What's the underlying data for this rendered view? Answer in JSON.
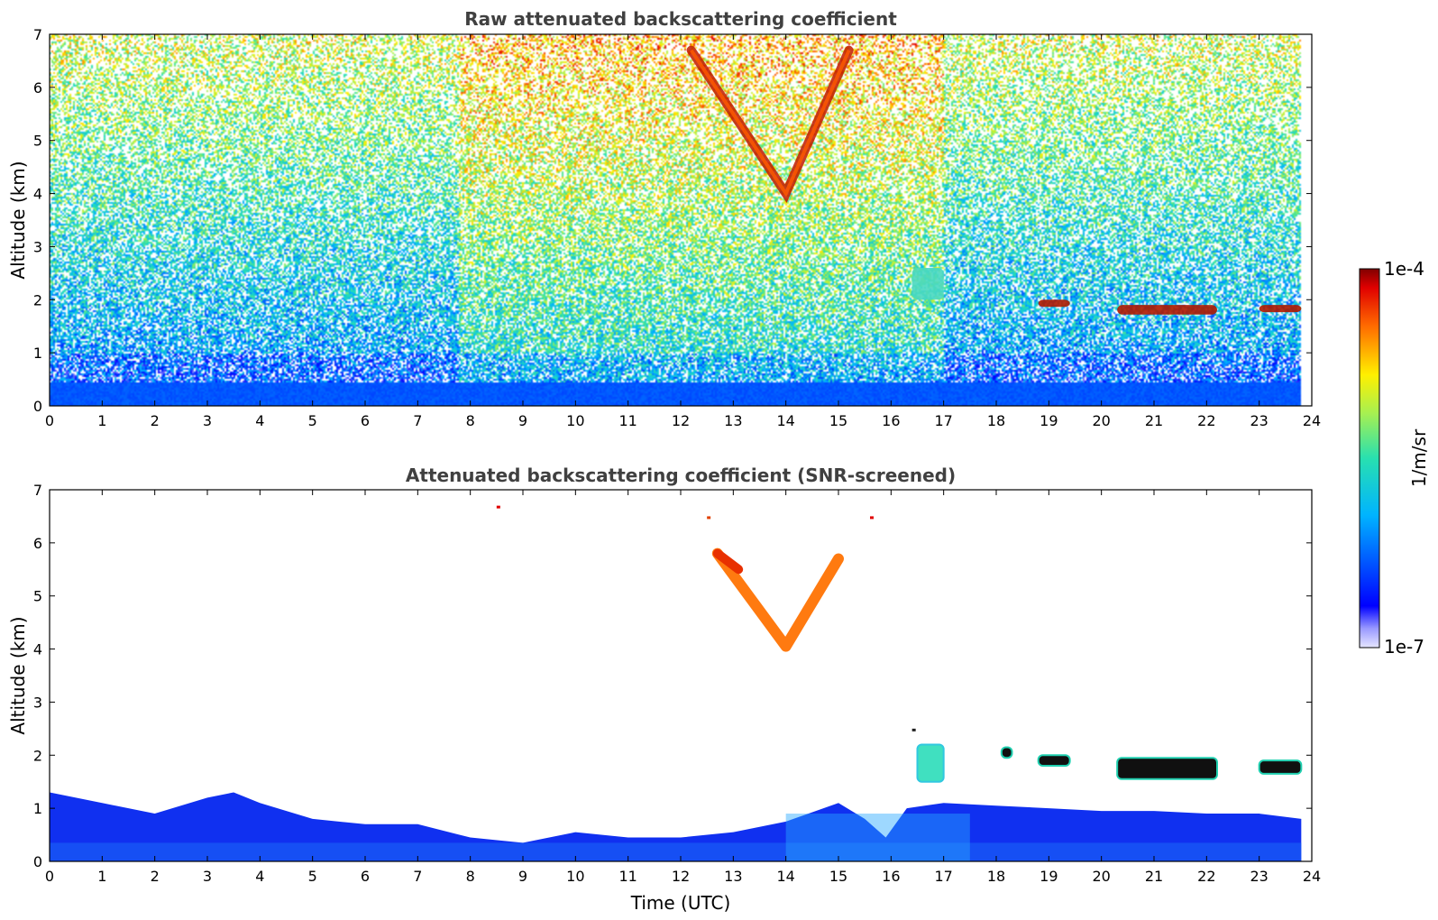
{
  "chart_data": [
    {
      "type": "heatmap",
      "title": "Raw attenuated backscattering coefficient",
      "ylabel": "Altitude (km)",
      "xlabel": "",
      "xlim": [
        0,
        24
      ],
      "ylim": [
        0,
        7
      ],
      "xticks": [
        "0",
        "1",
        "2",
        "3",
        "4",
        "5",
        "6",
        "7",
        "8",
        "9",
        "10",
        "11",
        "12",
        "13",
        "14",
        "15",
        "16",
        "17",
        "18",
        "19",
        "20",
        "21",
        "22",
        "23",
        "24"
      ],
      "yticks": [
        "0",
        "1",
        "2",
        "3",
        "4",
        "5",
        "6",
        "7"
      ],
      "data_end_hour": 23.8,
      "features": [
        {
          "kind": "boundary_layer",
          "top_km": 0.5
        },
        {
          "kind": "cloud_v",
          "hours": [
            12.2,
            15.2
          ],
          "apex_hour": 14.0,
          "apex_km": 4.0,
          "top_km": 7.0
        },
        {
          "kind": "cloud_layer",
          "hours": [
            20.3,
            22.2
          ],
          "km": [
            1.6,
            1.9
          ]
        },
        {
          "kind": "cloud_layer",
          "hours": [
            23.0,
            23.8
          ],
          "km": [
            1.7,
            1.9
          ]
        },
        {
          "kind": "cloud_patch",
          "hours": [
            16.4,
            17.0
          ],
          "km": [
            1.6,
            2.6
          ]
        },
        {
          "kind": "cloud_patch",
          "hours": [
            18.8,
            19.4
          ],
          "km": [
            1.8,
            2.0
          ]
        }
      ]
    },
    {
      "type": "heatmap",
      "title": "Attenuated backscattering coefficient (SNR-screened)",
      "ylabel": "Altitude (km)",
      "xlabel": "Time (UTC)",
      "xlim": [
        0,
        24
      ],
      "ylim": [
        0,
        7
      ],
      "xticks": [
        "0",
        "1",
        "2",
        "3",
        "4",
        "5",
        "6",
        "7",
        "8",
        "9",
        "10",
        "11",
        "12",
        "13",
        "14",
        "15",
        "16",
        "17",
        "18",
        "19",
        "20",
        "21",
        "22",
        "23",
        "24"
      ],
      "yticks": [
        "0",
        "1",
        "2",
        "3",
        "4",
        "5",
        "6",
        "7"
      ],
      "data_end_hour": 23.8,
      "boundary_layer_top_km": [
        [
          0,
          1.3
        ],
        [
          1,
          1.1
        ],
        [
          2,
          0.9
        ],
        [
          3,
          1.2
        ],
        [
          3.5,
          1.3
        ],
        [
          4,
          1.1
        ],
        [
          5,
          0.8
        ],
        [
          6,
          0.7
        ],
        [
          7,
          0.7
        ],
        [
          8,
          0.45
        ],
        [
          9,
          0.35
        ],
        [
          10,
          0.55
        ],
        [
          11,
          0.45
        ],
        [
          12,
          0.45
        ],
        [
          13,
          0.55
        ],
        [
          14,
          0.75
        ],
        [
          15,
          1.1
        ],
        [
          15.5,
          0.8
        ],
        [
          15.9,
          0.45
        ],
        [
          16.3,
          1.0
        ],
        [
          17,
          1.1
        ],
        [
          18,
          1.05
        ],
        [
          19,
          1.0
        ],
        [
          20,
          0.95
        ],
        [
          21,
          0.95
        ],
        [
          22,
          0.9
        ],
        [
          23,
          0.9
        ],
        [
          23.8,
          0.8
        ]
      ]
    }
  ],
  "colorbar": {
    "label": "1/m/sr",
    "min_label": "1e-7",
    "max_label": "1e-4",
    "colormap": "jet"
  }
}
